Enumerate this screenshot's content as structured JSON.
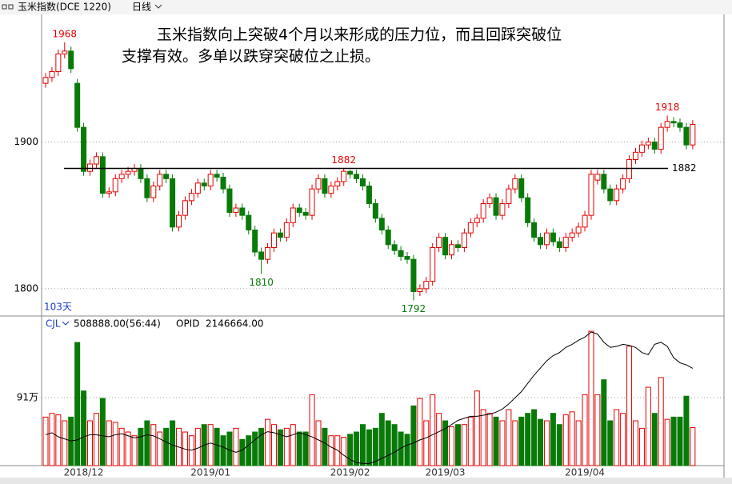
{
  "chart_data": {
    "type": "candlestick",
    "instrument": "玉米指数(DCE 1220)",
    "period": "日线",
    "bar_count_label": "103天",
    "annotation": [
      "玉米指数向上突破4个月以来形成的压力位，而且回踩突破位",
      "支撑有效。多单以跌穿突破位之止损。"
    ],
    "up_color": "#e60000",
    "down_color": "#087a08",
    "ylim": [
      1783,
      1987
    ],
    "yticks": [
      1800,
      1900
    ],
    "resistance": 1882,
    "x_labels": [
      "2018/12",
      "2019/01",
      "2019/02",
      "2019/03",
      "2019/04"
    ],
    "open": [
      1940,
      1944,
      1948,
      1960,
      1962,
      1940,
      1910,
      1880,
      1885,
      1890,
      1865,
      1866,
      1875,
      1878,
      1880,
      1882,
      1875,
      1862,
      1870,
      1878,
      1875,
      1842,
      1850,
      1860,
      1865,
      1872,
      1870,
      1878,
      1876,
      1868,
      1852,
      1855,
      1850,
      1840,
      1825,
      1820,
      1828,
      1838,
      1835,
      1845,
      1855,
      1852,
      1850,
      1868,
      1875,
      1865,
      1870,
      1873,
      1880,
      1878,
      1875,
      1870,
      1858,
      1848,
      1840,
      1830,
      1826,
      1822,
      1820,
      1798,
      1800,
      1805,
      1828,
      1835,
      1823,
      1830,
      1828,
      1838,
      1845,
      1848,
      1858,
      1862,
      1850,
      1858,
      1868,
      1875,
      1862,
      1845,
      1835,
      1830,
      1838,
      1832,
      1828,
      1835,
      1838,
      1842,
      1850,
      1874,
      1878,
      1868,
      1860,
      1868,
      1875,
      1888,
      1893,
      1898,
      1900,
      1895,
      1910,
      1914,
      1913,
      1910,
      1898
    ],
    "high": [
      1947,
      1951,
      1963,
      1968,
      1965,
      1943,
      1913,
      1888,
      1893,
      1893,
      1869,
      1878,
      1881,
      1883,
      1885,
      1885,
      1878,
      1873,
      1881,
      1881,
      1878,
      1853,
      1863,
      1868,
      1875,
      1875,
      1881,
      1881,
      1879,
      1871,
      1858,
      1858,
      1853,
      1843,
      1828,
      1831,
      1841,
      1841,
      1848,
      1858,
      1858,
      1855,
      1871,
      1878,
      1878,
      1873,
      1876,
      1882,
      1881,
      1881,
      1878,
      1873,
      1861,
      1851,
      1843,
      1833,
      1829,
      1825,
      1823,
      1803,
      1808,
      1831,
      1838,
      1838,
      1833,
      1833,
      1841,
      1848,
      1851,
      1861,
      1865,
      1865,
      1861,
      1871,
      1878,
      1878,
      1865,
      1848,
      1838,
      1841,
      1841,
      1835,
      1838,
      1841,
      1845,
      1853,
      1881,
      1881,
      1881,
      1871,
      1871,
      1878,
      1891,
      1896,
      1901,
      1903,
      1903,
      1913,
      1918,
      1917,
      1916,
      1913,
      1915
    ],
    "low": [
      1937,
      1941,
      1945,
      1957,
      1947,
      1907,
      1877,
      1877,
      1882,
      1862,
      1862,
      1863,
      1872,
      1875,
      1877,
      1872,
      1859,
      1859,
      1867,
      1872,
      1839,
      1839,
      1847,
      1857,
      1862,
      1867,
      1867,
      1873,
      1865,
      1849,
      1849,
      1847,
      1837,
      1822,
      1810,
      1817,
      1825,
      1832,
      1832,
      1842,
      1849,
      1847,
      1847,
      1865,
      1862,
      1862,
      1867,
      1870,
      1875,
      1872,
      1867,
      1855,
      1845,
      1837,
      1827,
      1823,
      1819,
      1817,
      1792,
      1795,
      1797,
      1802,
      1825,
      1820,
      1820,
      1825,
      1825,
      1835,
      1842,
      1845,
      1855,
      1847,
      1847,
      1855,
      1865,
      1859,
      1842,
      1832,
      1827,
      1827,
      1829,
      1825,
      1825,
      1832,
      1835,
      1839,
      1847,
      1871,
      1865,
      1857,
      1857,
      1865,
      1872,
      1885,
      1890,
      1895,
      1892,
      1892,
      1907,
      1910,
      1907,
      1895,
      1895
    ],
    "close": [
      1944,
      1948,
      1960,
      1962,
      1950,
      1910,
      1880,
      1885,
      1890,
      1865,
      1866,
      1875,
      1878,
      1880,
      1882,
      1875,
      1862,
      1870,
      1878,
      1875,
      1842,
      1850,
      1860,
      1865,
      1872,
      1870,
      1878,
      1876,
      1868,
      1852,
      1855,
      1850,
      1840,
      1825,
      1820,
      1828,
      1838,
      1835,
      1845,
      1855,
      1852,
      1850,
      1868,
      1875,
      1865,
      1870,
      1873,
      1880,
      1878,
      1875,
      1870,
      1858,
      1848,
      1840,
      1830,
      1826,
      1822,
      1820,
      1798,
      1800,
      1805,
      1828,
      1835,
      1823,
      1830,
      1828,
      1838,
      1845,
      1848,
      1858,
      1862,
      1850,
      1858,
      1868,
      1875,
      1862,
      1845,
      1835,
      1830,
      1838,
      1832,
      1828,
      1835,
      1838,
      1842,
      1850,
      1878,
      1878,
      1868,
      1860,
      1868,
      1875,
      1888,
      1893,
      1898,
      1900,
      1895,
      1910,
      1914,
      1913,
      1910,
      1898,
      1912
    ],
    "volume_ylim": [
      0,
      1790000
    ],
    "volume_yticks": [
      {
        "value": 910000,
        "label": "91万"
      }
    ],
    "y2lim": [
      1200000,
      2500000
    ],
    "series": [
      {
        "name": "CJL",
        "last_label": "508888.00(56:44)",
        "values": [
          650000,
          700000,
          680000,
          600000,
          650000,
          1650000,
          1000000,
          600000,
          700000,
          900000,
          600000,
          580000,
          500000,
          450000,
          400000,
          500000,
          600000,
          550000,
          450000,
          500000,
          600000,
          500000,
          450000,
          400000,
          500000,
          550000,
          550000,
          500000,
          400000,
          450000,
          500000,
          350000,
          400000,
          450000,
          500000,
          620000,
          550000,
          480000,
          500000,
          550000,
          450000,
          450000,
          950000,
          600000,
          500000,
          400000,
          400000,
          380000,
          420000,
          450000,
          550000,
          480000,
          500000,
          700000,
          600000,
          550000,
          450000,
          420000,
          800000,
          900000,
          600000,
          950000,
          700000,
          600000,
          520000,
          550000,
          550000,
          650000,
          1000000,
          750000,
          700000,
          650000,
          600000,
          750000,
          600000,
          650000,
          700000,
          750000,
          620000,
          600000,
          700000,
          550000,
          680000,
          720000,
          600000,
          950000,
          1800000,
          950000,
          1150000,
          600000,
          750000,
          700000,
          1600000,
          600000,
          500000,
          1050000,
          700000,
          1180000,
          620000,
          650000,
          650000,
          930000,
          508888
        ]
      },
      {
        "name": "OPID",
        "axis": "y2",
        "color": "#000000",
        "last_label": "2146664.00",
        "values": [
          1500000,
          1520000,
          1480000,
          1460000,
          1440000,
          1450000,
          1480000,
          1500000,
          1500000,
          1490000,
          1480000,
          1500000,
          1510000,
          1490000,
          1470000,
          1480000,
          1500000,
          1490000,
          1460000,
          1430000,
          1400000,
          1380000,
          1360000,
          1350000,
          1370000,
          1400000,
          1420000,
          1400000,
          1380000,
          1350000,
          1330000,
          1350000,
          1400000,
          1450000,
          1500000,
          1530000,
          1520000,
          1500000,
          1480000,
          1500000,
          1520000,
          1500000,
          1480000,
          1450000,
          1420000,
          1380000,
          1350000,
          1300000,
          1260000,
          1230000,
          1220000,
          1220000,
          1240000,
          1270000,
          1300000,
          1330000,
          1370000,
          1400000,
          1420000,
          1450000,
          1470000,
          1500000,
          1530000,
          1560000,
          1600000,
          1640000,
          1660000,
          1680000,
          1680000,
          1690000,
          1700000,
          1720000,
          1750000,
          1800000,
          1860000,
          1920000,
          2000000,
          2080000,
          2150000,
          2220000,
          2270000,
          2300000,
          2350000,
          2380000,
          2420000,
          2450000,
          2500000,
          2480000,
          2400000,
          2350000,
          2360000,
          2380000,
          2370000,
          2350000,
          2300000,
          2280000,
          2380000,
          2400000,
          2360000,
          2250000,
          2200000,
          2180000,
          2146664
        ]
      }
    ]
  }
}
